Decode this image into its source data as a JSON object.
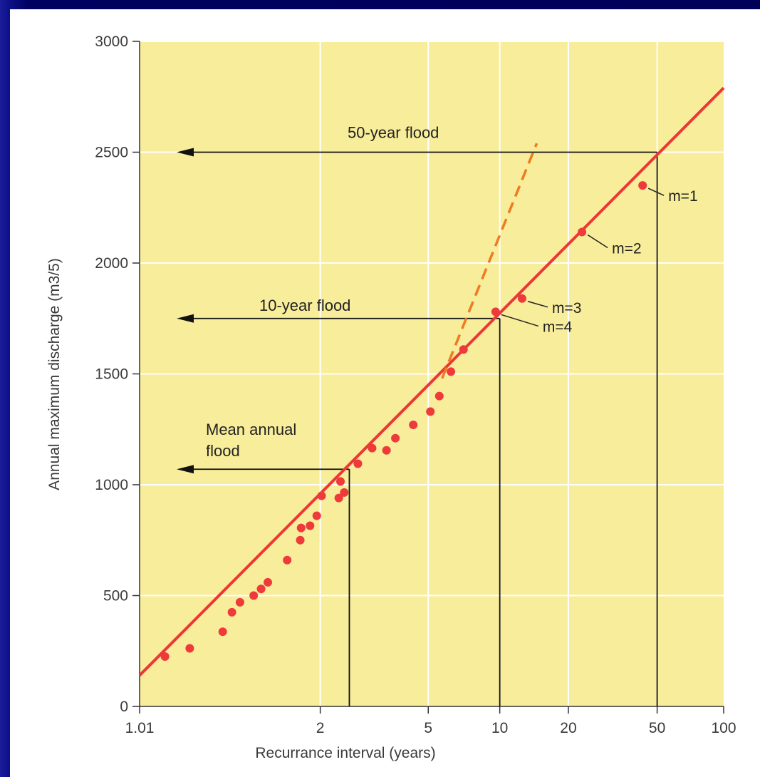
{
  "colors": {
    "plot_background": "#f8ed9a",
    "grid": "#ffffff",
    "fit_line": "#ee3636",
    "points": "#ee3a3a",
    "extrapolation": "#f07a22",
    "reference_lines": "#111111"
  },
  "chart_data": {
    "type": "scatter",
    "title": "",
    "xlabel": "Recurrance interval (years)",
    "ylabel": "Annual maximum discharge (m3/5)",
    "x_scale": "gumbel-probability",
    "xlim": [
      1.01,
      100
    ],
    "ylim": [
      0,
      3000
    ],
    "x_ticks": [
      1.01,
      2,
      5,
      10,
      20,
      50,
      100
    ],
    "x_tick_labels": [
      "1.01",
      "2",
      "5",
      "10",
      "20",
      "50",
      "100"
    ],
    "y_ticks": [
      0,
      500,
      1000,
      1500,
      2000,
      2500,
      3000
    ],
    "y_tick_labels": [
      "0",
      "500",
      "1000",
      "1500",
      "2000",
      "2500",
      "3000"
    ],
    "grid": true,
    "series": [
      {
        "kind": "scatter",
        "points": [
          {
            "x": 1.03,
            "y": 225
          },
          {
            "x": 1.07,
            "y": 262
          },
          {
            "x": 1.17,
            "y": 337
          },
          {
            "x": 1.21,
            "y": 425
          },
          {
            "x": 1.25,
            "y": 470
          },
          {
            "x": 1.33,
            "y": 500
          },
          {
            "x": 1.38,
            "y": 530
          },
          {
            "x": 1.43,
            "y": 560
          },
          {
            "x": 1.6,
            "y": 660
          },
          {
            "x": 1.74,
            "y": 750
          },
          {
            "x": 1.75,
            "y": 805
          },
          {
            "x": 1.86,
            "y": 815
          },
          {
            "x": 1.95,
            "y": 860
          },
          {
            "x": 2.02,
            "y": 950
          },
          {
            "x": 2.3,
            "y": 940
          },
          {
            "x": 2.33,
            "y": 1015
          },
          {
            "x": 2.4,
            "y": 965
          },
          {
            "x": 2.68,
            "y": 1095
          },
          {
            "x": 3.02,
            "y": 1165
          },
          {
            "x": 3.42,
            "y": 1155
          },
          {
            "x": 3.7,
            "y": 1210
          },
          {
            "x": 4.35,
            "y": 1270
          },
          {
            "x": 5.1,
            "y": 1330
          },
          {
            "x": 5.55,
            "y": 1400
          },
          {
            "x": 6.2,
            "y": 1510
          },
          {
            "x": 7.0,
            "y": 1610
          },
          {
            "x": 9.6,
            "y": 1780
          },
          {
            "x": 12.5,
            "y": 1840
          },
          {
            "x": 23,
            "y": 2140
          },
          {
            "x": 43,
            "y": 2350
          }
        ]
      },
      {
        "kind": "line",
        "style": "solid",
        "points": [
          {
            "x": 1.01,
            "y": 140
          },
          {
            "x": 100,
            "y": 2790
          }
        ]
      },
      {
        "kind": "line",
        "style": "dashed",
        "points": [
          {
            "x": 5.7,
            "y": 1480
          },
          {
            "x": 14.5,
            "y": 2540
          }
        ]
      }
    ],
    "reference_lines": [
      {
        "label": "50-year flood",
        "recurrence_interval": 50,
        "discharge": 2500
      },
      {
        "label": "10-year flood",
        "recurrence_interval": 10,
        "discharge": 1750
      },
      {
        "label": "Mean annual flood",
        "label_lines": [
          "Mean annual",
          "flood"
        ],
        "recurrence_interval": 2.5,
        "discharge": 1070
      }
    ],
    "rank_labels": [
      {
        "text": "m=1",
        "x": 43,
        "y": 2350
      },
      {
        "text": "m=2",
        "x": 23,
        "y": 2140
      },
      {
        "text": "m=3",
        "x": 12.5,
        "y": 1840
      },
      {
        "text": "m=4",
        "x": 9.6,
        "y": 1780
      }
    ]
  }
}
